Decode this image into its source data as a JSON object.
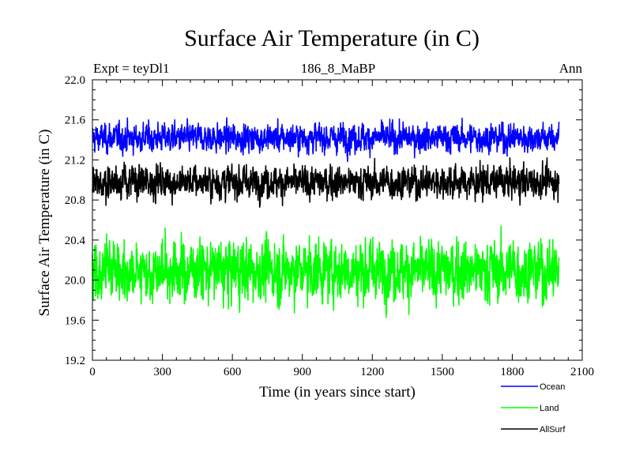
{
  "chart_data": {
    "type": "line",
    "title": "Surface Air Temperature (in C)",
    "subtitle_left": "Expt = teyDl1",
    "subtitle_center": "186_8_MaBP",
    "subtitle_right": "Ann",
    "xlabel": "Time (in years since start)",
    "ylabel": "Surface Air Temperature (in C)",
    "xlim": [
      0,
      2100
    ],
    "ylim": [
      19.2,
      22.0
    ],
    "xticks": [
      0,
      300,
      600,
      900,
      1200,
      1500,
      1800,
      2100
    ],
    "xtick_labels": [
      "0",
      "300",
      "600",
      "900",
      "1200",
      "1500",
      "1800",
      "2100"
    ],
    "yticks": [
      19.2,
      19.6,
      20.0,
      20.4,
      20.8,
      21.2,
      21.6,
      22.0
    ],
    "ytick_labels": [
      "19.2",
      "19.6",
      "20.0",
      "20.4",
      "20.8",
      "21.2",
      "21.6",
      "22.0"
    ],
    "x_range": [
      0,
      2000
    ],
    "series": [
      {
        "name": "Ocean",
        "color": "#0000ff",
        "mean": 21.42,
        "std": 0.07,
        "min": 21.18,
        "max": 21.62,
        "n_points": 2001
      },
      {
        "name": "Land",
        "color": "#00ff00",
        "mean": 20.1,
        "std": 0.15,
        "min": 19.55,
        "max": 20.55,
        "n_points": 2001
      },
      {
        "name": "AllSurf",
        "color": "#000000",
        "mean": 20.98,
        "std": 0.08,
        "min": 20.7,
        "max": 21.22,
        "n_points": 2001
      }
    ],
    "legend": [
      "Ocean",
      "Land",
      "AllSurf"
    ]
  }
}
